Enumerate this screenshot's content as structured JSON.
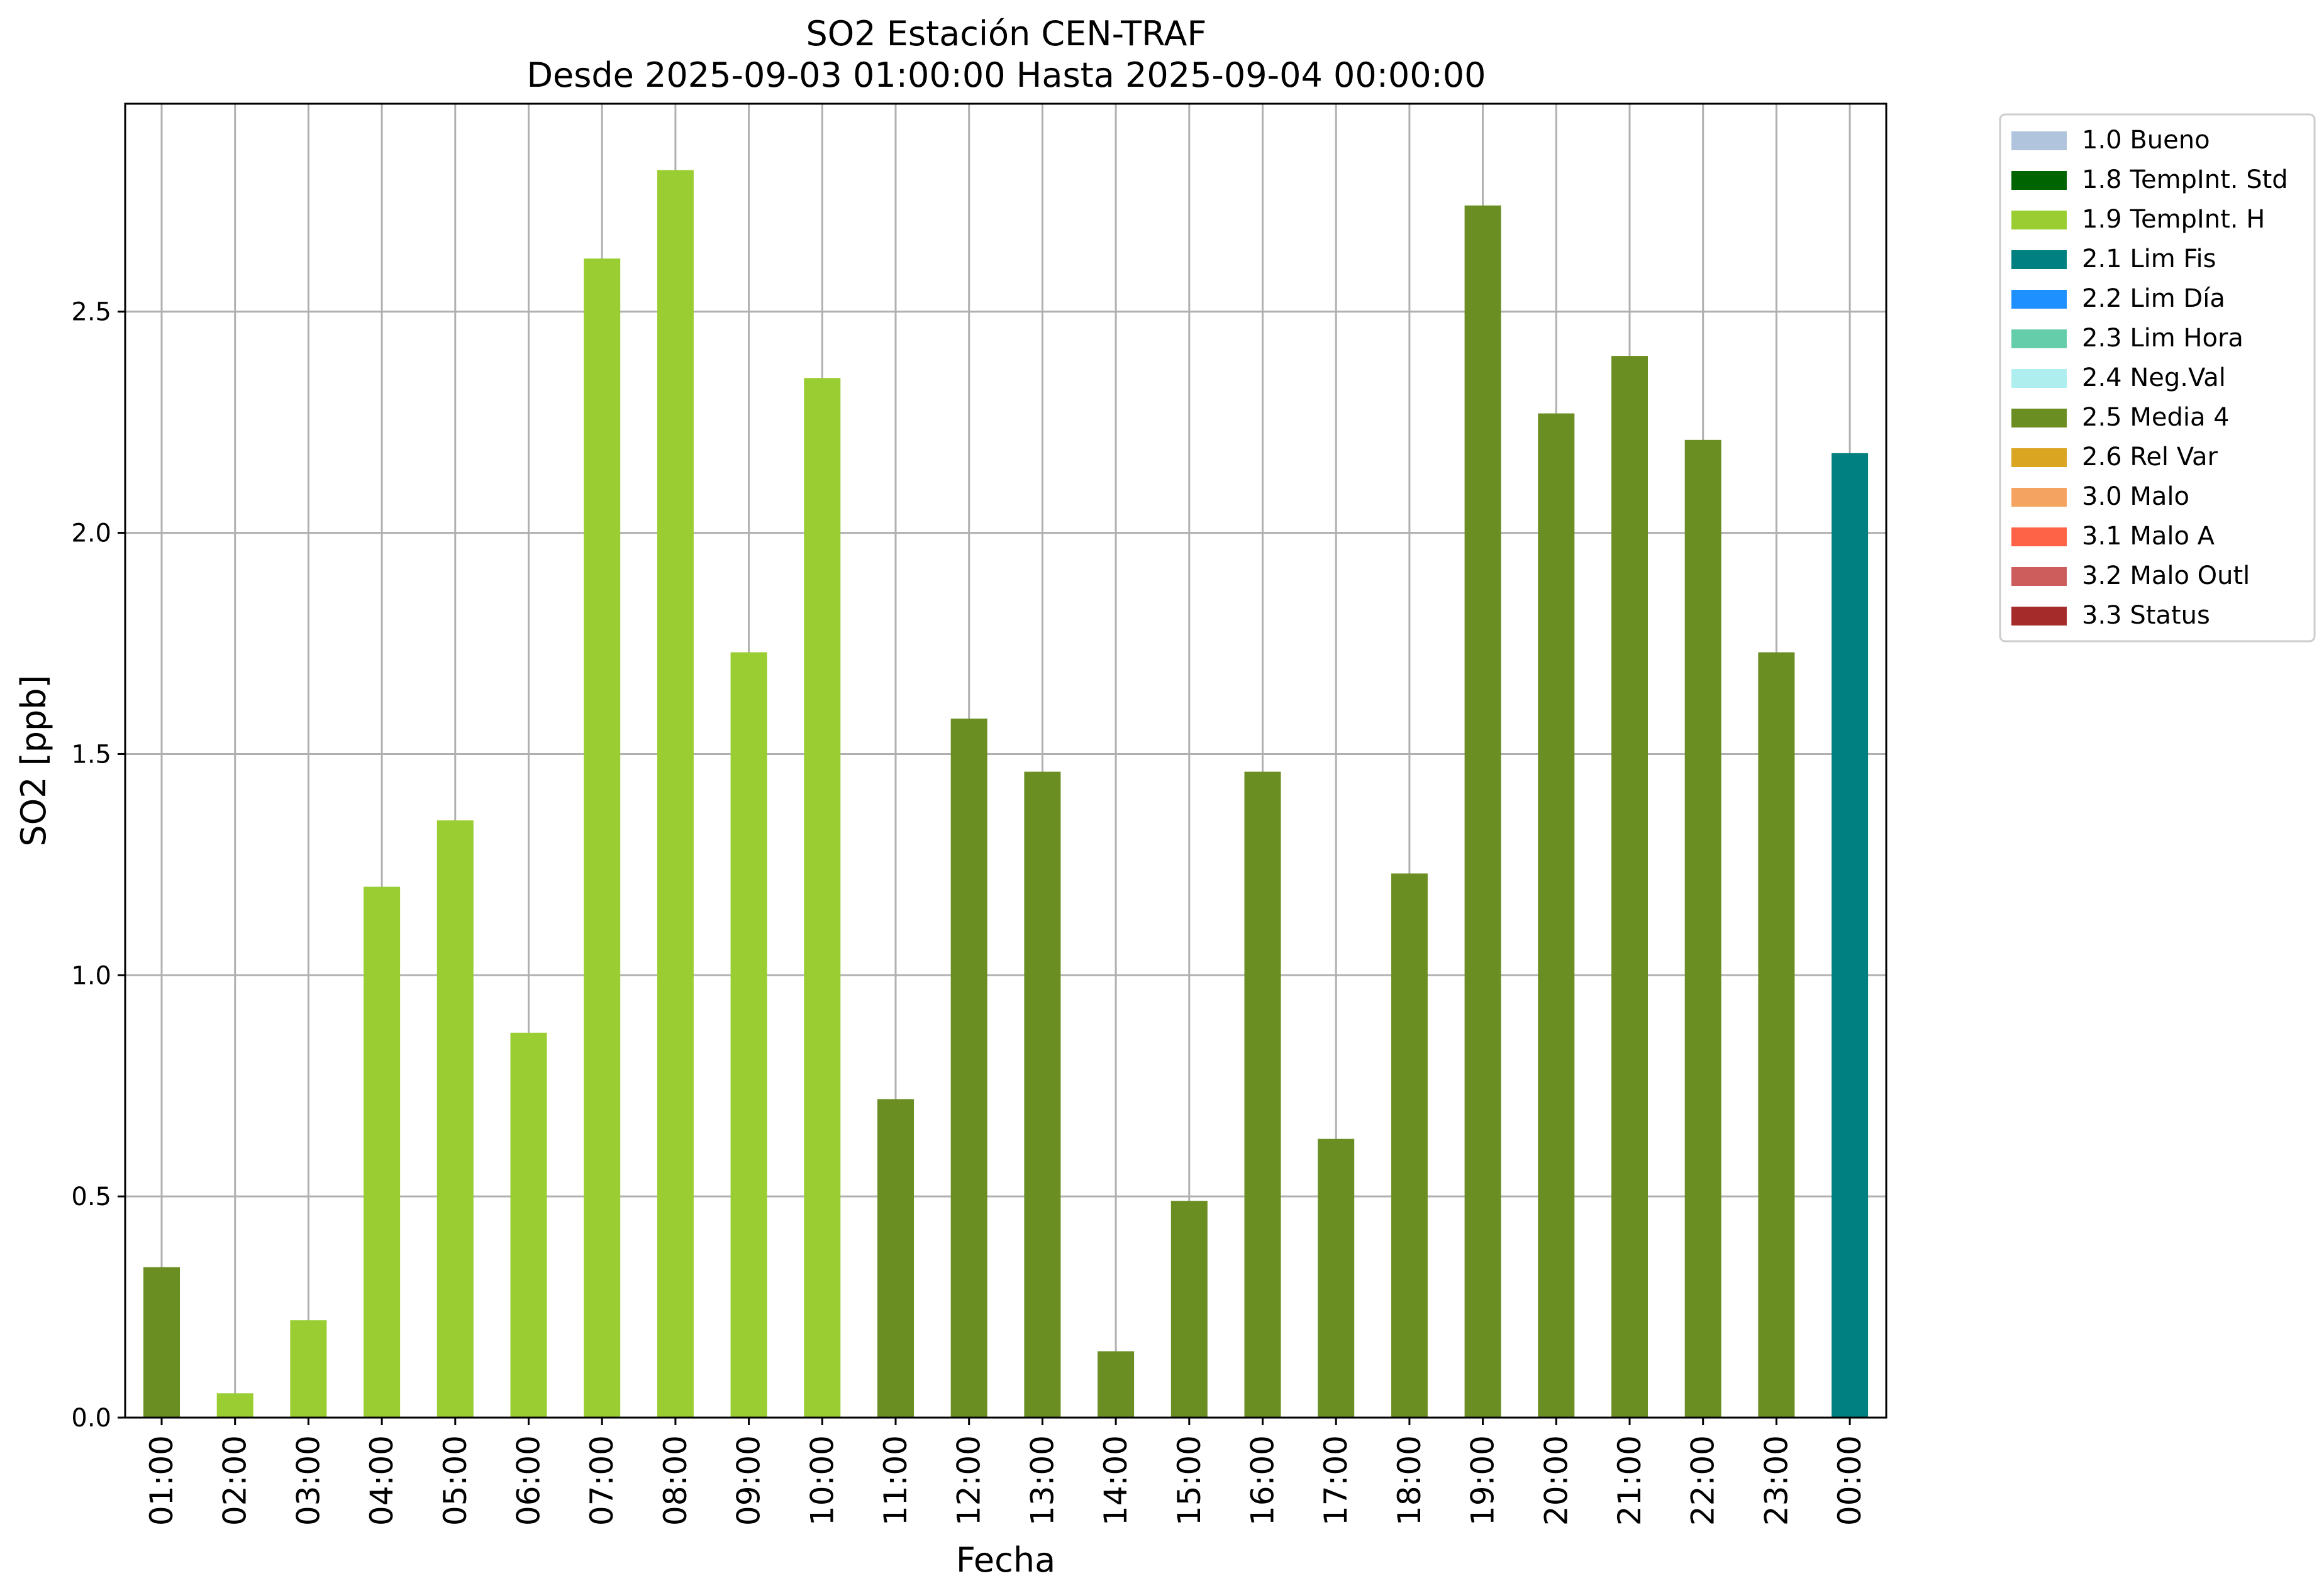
{
  "chart_data": {
    "type": "bar",
    "title": "SO2 Estación CEN-TRAF",
    "subtitle": "Desde 2025-09-03 01:00:00 Hasta 2025-09-04 00:00:00",
    "xlabel": "Fecha",
    "ylabel": "SO2 [ppb]",
    "ylim": [
      0,
      2.97
    ],
    "yticks": [
      "0.0",
      "0.5",
      "1.0",
      "1.5",
      "2.0",
      "2.5"
    ],
    "grid": true,
    "legend_position": "outside-top-right",
    "categories": [
      "01:00",
      "02:00",
      "03:00",
      "04:00",
      "05:00",
      "06:00",
      "07:00",
      "08:00",
      "09:00",
      "10:00",
      "11:00",
      "12:00",
      "13:00",
      "14:00",
      "15:00",
      "16:00",
      "17:00",
      "18:00",
      "19:00",
      "20:00",
      "21:00",
      "22:00",
      "23:00",
      "00:00"
    ],
    "values": [
      0.34,
      0.055,
      0.22,
      1.2,
      1.35,
      0.87,
      2.62,
      2.82,
      1.73,
      2.35,
      0.72,
      1.58,
      1.46,
      0.15,
      0.49,
      1.46,
      0.63,
      1.23,
      2.74,
      2.27,
      2.4,
      2.21,
      1.73,
      2.18
    ],
    "bar_flags": [
      "2.5 Media 4",
      "1.9 TempInt. H",
      "1.9 TempInt. H",
      "1.9 TempInt. H",
      "1.9 TempInt. H",
      "1.9 TempInt. H",
      "1.9 TempInt. H",
      "1.9 TempInt. H",
      "1.9 TempInt. H",
      "1.9 TempInt. H",
      "2.5 Media 4",
      "2.5 Media 4",
      "2.5 Media 4",
      "2.5 Media 4",
      "2.5 Media 4",
      "2.5 Media 4",
      "2.5 Media 4",
      "2.5 Media 4",
      "2.5 Media 4",
      "2.5 Media 4",
      "2.5 Media 4",
      "2.5 Media 4",
      "2.5 Media 4",
      "2.1 Lim Fis"
    ],
    "legend": [
      {
        "label": "1.0 Bueno",
        "color": "#b0c4de"
      },
      {
        "label": "1.8 TempInt. Std",
        "color": "#006400"
      },
      {
        "label": "1.9 TempInt. H",
        "color": "#9acd32"
      },
      {
        "label": "2.1 Lim Fis",
        "color": "#008080"
      },
      {
        "label": "2.2 Lim Día",
        "color": "#1e90ff"
      },
      {
        "label": "2.3 Lim Hora",
        "color": "#66cdaa"
      },
      {
        "label": "2.4 Neg.Val",
        "color": "#afeeee"
      },
      {
        "label": "2.5 Media 4",
        "color": "#6b8e23"
      },
      {
        "label": "2.6 Rel Var",
        "color": "#daa520"
      },
      {
        "label": "3.0 Malo",
        "color": "#f4a460"
      },
      {
        "label": "3.1 Malo A",
        "color": "#ff6347"
      },
      {
        "label": "3.2 Malo Outl",
        "color": "#cd5c5c"
      },
      {
        "label": "3.3 Status",
        "color": "#a52a2a"
      }
    ]
  }
}
